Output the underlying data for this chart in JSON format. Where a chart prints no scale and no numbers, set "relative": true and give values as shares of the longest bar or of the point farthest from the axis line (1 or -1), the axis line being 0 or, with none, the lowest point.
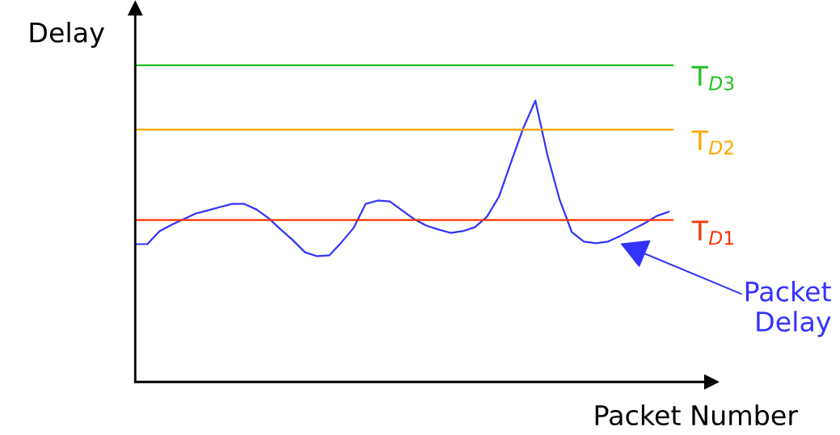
{
  "chart_data": {
    "type": "line",
    "relative": true,
    "xlabel": "Packet Number",
    "ylabel": "Delay",
    "marker": "none",
    "line_style": "solid",
    "categories": [
      null,
      null,
      null,
      null,
      null,
      null,
      null,
      null,
      null,
      null,
      null,
      null,
      null,
      null,
      null,
      null,
      null,
      null,
      null,
      null,
      null,
      null,
      null,
      null,
      null,
      null,
      null,
      null,
      null,
      null,
      null,
      null,
      null,
      null,
      null,
      null,
      null,
      null,
      null,
      null,
      null,
      null,
      null,
      null,
      null
    ],
    "series": [
      {
        "color": "#3333ff",
        "values": [
          0.49,
          0.49,
          0.536,
          0.559,
          0.579,
          0.599,
          0.61,
          0.622,
          0.633,
          0.633,
          0.613,
          0.582,
          0.542,
          0.504,
          0.461,
          0.447,
          0.45,
          0.496,
          0.547,
          0.633,
          0.645,
          0.642,
          0.61,
          0.579,
          0.556,
          0.542,
          0.53,
          0.536,
          0.55,
          0.587,
          0.659,
          0.782,
          0.903,
          1.0,
          0.805,
          0.648,
          0.533,
          0.499,
          0.493,
          0.499,
          0.519,
          0.542,
          0.564,
          0.59,
          0.605
        ]
      }
    ],
    "ref_lines": [
      {
        "axis": "y",
        "value": 1.126,
        "label": "T$_{D3}$",
        "color": "#22c022",
        "line_style": "solid"
      },
      {
        "axis": "y",
        "value": 0.897,
        "label": "T$_{D2}$",
        "color": "#ffa500",
        "line_style": "solid"
      },
      {
        "axis": "y",
        "value": 0.576,
        "label": "T$_{D1}$",
        "color": "#ff3300",
        "line_style": "solid"
      }
    ],
    "annotations": [
      "Packet\nDelay"
    ]
  }
}
